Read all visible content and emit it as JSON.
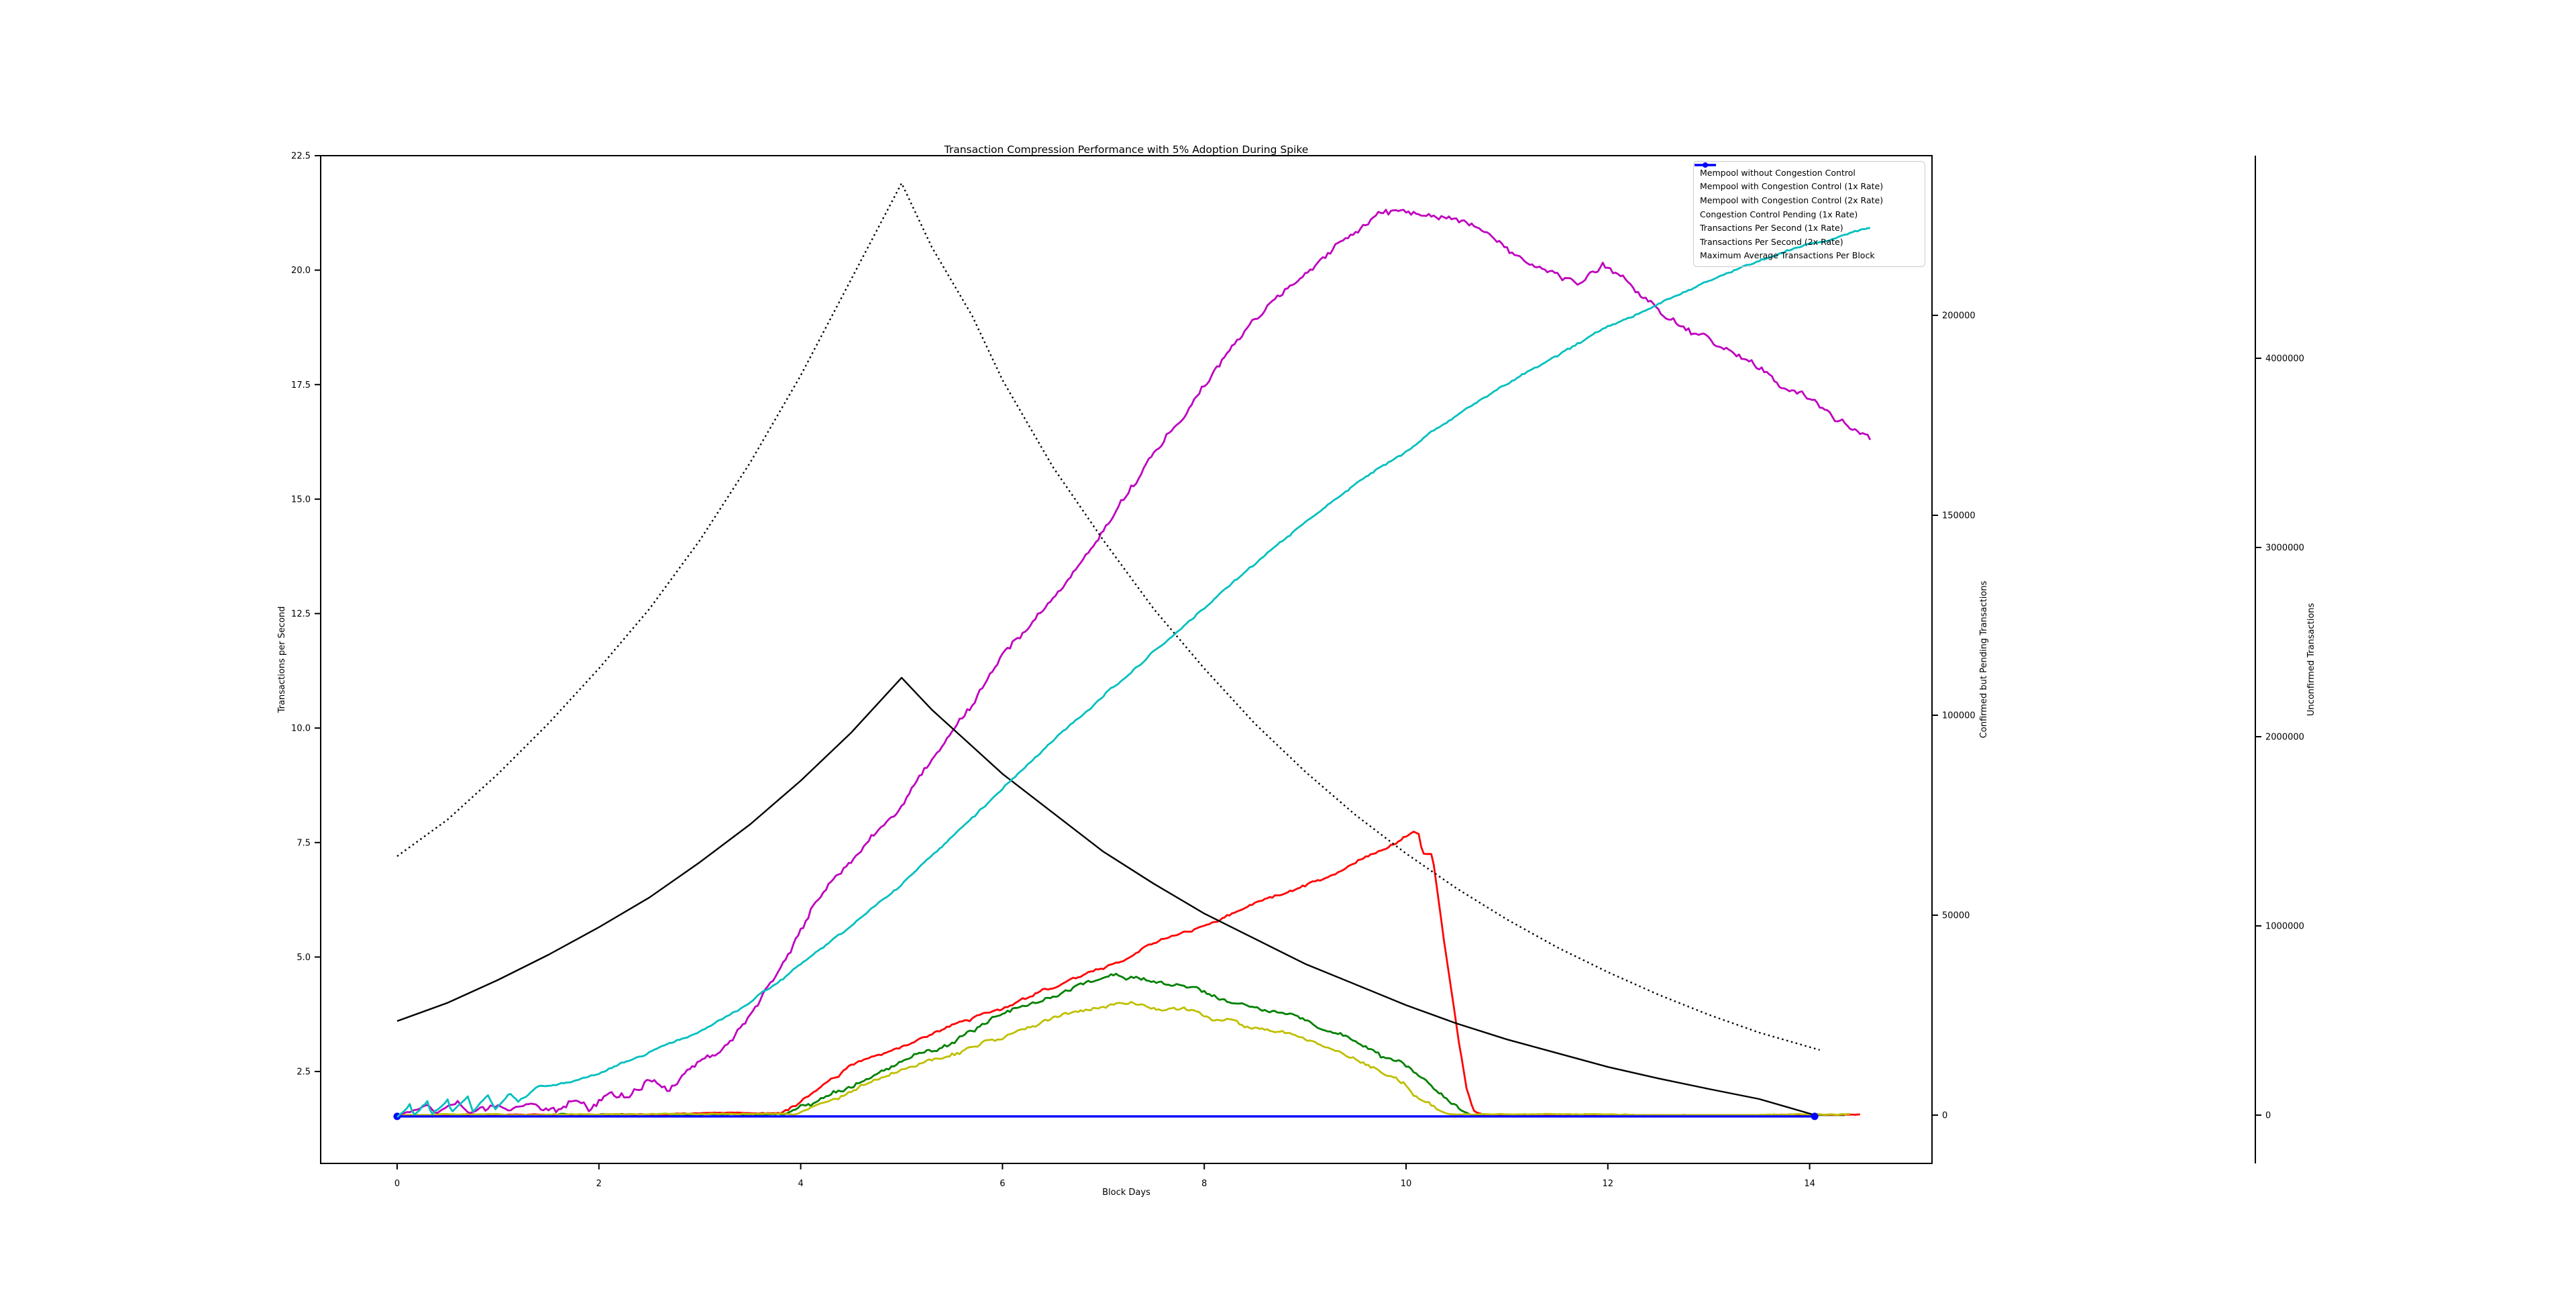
{
  "title": "Transaction Compression Performance with 5% Adoption During Spike",
  "chart_data": {
    "type": "line",
    "title": "Transaction Compression Performance with 5% Adoption During Spike",
    "grid": false,
    "legend_position": "upper right",
    "axes": {
      "x": {
        "label": "Block Days",
        "range": [
          -0.758,
          15.213
        ],
        "ticks": [
          {
            "v": 0,
            "label": "0"
          },
          {
            "v": 2,
            "label": "2"
          },
          {
            "v": 4,
            "label": "4"
          },
          {
            "v": 6,
            "label": "6"
          },
          {
            "v": 8,
            "label": "8"
          },
          {
            "v": 10,
            "label": "10"
          },
          {
            "v": 12,
            "label": "12"
          },
          {
            "v": 14,
            "label": "14"
          }
        ]
      },
      "left": {
        "label": "Transactions per Second",
        "color": "#000000",
        "range": [
          0.493,
          22.5
        ],
        "ticks": [
          {
            "v": 2.5,
            "label": "2.5"
          },
          {
            "v": 5,
            "label": "5.0"
          },
          {
            "v": 7.5,
            "label": "7.5"
          },
          {
            "v": 10,
            "label": "10.0"
          },
          {
            "v": 12.5,
            "label": "12.5"
          },
          {
            "v": 15,
            "label": "15.0"
          },
          {
            "v": 17.5,
            "label": "17.5"
          },
          {
            "v": 20,
            "label": "20.0"
          },
          {
            "v": 22.5,
            "label": "22.5"
          }
        ]
      },
      "right1": {
        "label": "Confirmed but Pending Transactions",
        "color": "#ff0000",
        "range": [
          -12080,
          239930
        ],
        "ticks": [
          {
            "v": 0,
            "label": "0"
          },
          {
            "v": 50000,
            "label": "50000"
          },
          {
            "v": 100000,
            "label": "100000"
          },
          {
            "v": 150000,
            "label": "150000"
          },
          {
            "v": 200000,
            "label": "200000"
          }
        ]
      },
      "right2": {
        "label": "Unconfirmed Transactions",
        "color": "#bfbf00",
        "range": [
          -255300,
          5070800
        ],
        "ticks": [
          {
            "v": 0,
            "label": "0"
          },
          {
            "v": 1000000,
            "label": "1000000"
          },
          {
            "v": 2000000,
            "label": "2000000"
          },
          {
            "v": 3000000,
            "label": "3000000"
          },
          {
            "v": 4000000,
            "label": "4000000"
          }
        ]
      }
    },
    "series": [
      {
        "name": "mempool-without-congestion-control",
        "label": "Mempool without Congestion Control",
        "color": "#008000",
        "axis": "right2",
        "width": 2.8,
        "dash": false,
        "noise": 22000,
        "seed": 7,
        "clampMin": 0,
        "points": [
          [
            0,
            0
          ],
          [
            3.85,
            3000
          ],
          [
            4.1,
            60000
          ],
          [
            4.4,
            140000
          ],
          [
            4.7,
            210000
          ],
          [
            5,
            280000
          ],
          [
            5.5,
            400000
          ],
          [
            6,
            515000
          ],
          [
            6.5,
            625000
          ],
          [
            6.85,
            700000
          ],
          [
            7.05,
            730000
          ],
          [
            7.3,
            715000
          ],
          [
            7.6,
            700000
          ],
          [
            8,
            655000
          ],
          [
            8.4,
            600000
          ],
          [
            8.8,
            540000
          ],
          [
            9.1,
            480000
          ],
          [
            9.4,
            415000
          ],
          [
            9.7,
            350000
          ],
          [
            10,
            240000
          ],
          [
            10.2,
            160000
          ],
          [
            10.4,
            75000
          ],
          [
            10.55,
            20000
          ],
          [
            10.65,
            2000
          ],
          [
            11,
            0
          ],
          [
            14.35,
            0
          ]
        ]
      },
      {
        "name": "congestion-control-pending-1x",
        "label": "Congestion Control Pending (1x Rate)",
        "color": "#ff0000",
        "axis": "right1",
        "width": 2.8,
        "dash": false,
        "noise": 700,
        "seed": 21,
        "clampMin": 0,
        "points": [
          [
            0,
            0
          ],
          [
            3.8,
            500
          ],
          [
            4.1,
            5500
          ],
          [
            4.5,
            12000
          ],
          [
            5,
            16500
          ],
          [
            5.5,
            22000
          ],
          [
            6,
            26500
          ],
          [
            6.5,
            32000
          ],
          [
            7,
            37000
          ],
          [
            7.5,
            43000
          ],
          [
            8,
            48000
          ],
          [
            8.5,
            52500
          ],
          [
            9,
            57000
          ],
          [
            9.3,
            59500
          ],
          [
            9.6,
            64500
          ],
          [
            9.9,
            68500
          ],
          [
            10.08,
            70800
          ],
          [
            10.13,
            70300
          ],
          [
            10.16,
            66000
          ],
          [
            10.26,
            65600
          ],
          [
            10.3,
            58000
          ],
          [
            10.36,
            47000
          ],
          [
            10.44,
            33000
          ],
          [
            10.52,
            19000
          ],
          [
            10.6,
            7000
          ],
          [
            10.68,
            1000
          ],
          [
            10.8,
            0
          ],
          [
            14.5,
            0
          ]
        ]
      },
      {
        "name": "mempool-with-congestion-control-1x",
        "label": "Mempool with Congestion Control (1x Rate)",
        "color": "#bfbf00",
        "axis": "right2",
        "width": 2.8,
        "dash": false,
        "noise": 20000,
        "seed": 13,
        "clampMin": 0,
        "points": [
          [
            0,
            0
          ],
          [
            3.95,
            3000
          ],
          [
            4.2,
            50000
          ],
          [
            4.5,
            115000
          ],
          [
            4.8,
            180000
          ],
          [
            5.1,
            240000
          ],
          [
            5.5,
            330000
          ],
          [
            6,
            425000
          ],
          [
            6.5,
            510000
          ],
          [
            6.9,
            570000
          ],
          [
            7.15,
            600000
          ],
          [
            7.4,
            590000
          ],
          [
            7.8,
            560000
          ],
          [
            8.2,
            510000
          ],
          [
            8.6,
            450000
          ],
          [
            9,
            385000
          ],
          [
            9.3,
            320000
          ],
          [
            9.6,
            255000
          ],
          [
            9.9,
            185000
          ],
          [
            10.1,
            105000
          ],
          [
            10.3,
            30000
          ],
          [
            10.42,
            3000
          ],
          [
            10.6,
            0
          ],
          [
            14.42,
            0
          ]
        ]
      },
      {
        "name": "mempool-with-congestion-control-2x",
        "label": "Mempool with Congestion Control (2x Rate)",
        "color": "#bf00bf",
        "axis": "right2",
        "width": 2.8,
        "dash": false,
        "noise": 35000,
        "seed": 5,
        "clampMin": 0,
        "points": [
          [
            0,
            0
          ],
          [
            0.15,
            30000
          ],
          [
            0.3,
            55000
          ],
          [
            0.38,
            8000
          ],
          [
            0.6,
            65000
          ],
          [
            0.72,
            15000
          ],
          [
            0.95,
            80000
          ],
          [
            1.1,
            25000
          ],
          [
            1.35,
            90000
          ],
          [
            1.5,
            35000
          ],
          [
            1.75,
            105000
          ],
          [
            1.9,
            60000
          ],
          [
            2.1,
            140000
          ],
          [
            2.3,
            110000
          ],
          [
            2.5,
            190000
          ],
          [
            2.7,
            160000
          ],
          [
            2.9,
            260000
          ],
          [
            3.1,
            330000
          ],
          [
            3.3,
            420000
          ],
          [
            3.5,
            560000
          ],
          [
            3.7,
            720000
          ],
          [
            3.9,
            900000
          ],
          [
            4.1,
            1060000
          ],
          [
            4.35,
            1230000
          ],
          [
            4.6,
            1400000
          ],
          [
            4.85,
            1560000
          ],
          [
            5.1,
            1730000
          ],
          [
            5.4,
            1930000
          ],
          [
            5.7,
            2140000
          ],
          [
            6,
            2400000
          ],
          [
            6.3,
            2580000
          ],
          [
            6.6,
            2760000
          ],
          [
            6.9,
            2980000
          ],
          [
            7.2,
            3250000
          ],
          [
            7.5,
            3500000
          ],
          [
            7.8,
            3720000
          ],
          [
            8.1,
            3930000
          ],
          [
            8.45,
            4200000
          ],
          [
            8.8,
            4390000
          ],
          [
            9.1,
            4520000
          ],
          [
            9.45,
            4680000
          ],
          [
            9.75,
            4780000
          ],
          [
            10.05,
            4800000
          ],
          [
            10.35,
            4750000
          ],
          [
            10.6,
            4690000
          ],
          [
            11,
            4560000
          ],
          [
            11.35,
            4450000
          ],
          [
            11.7,
            4370000
          ],
          [
            11.95,
            4480000
          ],
          [
            12.15,
            4400000
          ],
          [
            12.5,
            4270000
          ],
          [
            12.9,
            4140000
          ],
          [
            13.3,
            4030000
          ],
          [
            13.7,
            3890000
          ],
          [
            14.1,
            3730000
          ],
          [
            14.6,
            3550000
          ]
        ]
      },
      {
        "name": "transactions-per-second-1x",
        "label": "Transactions Per Second (1x Rate)",
        "color": "#000000",
        "axis": "left",
        "width": 2.4,
        "dash": false,
        "noise": 0,
        "seed": 1,
        "points": [
          [
            0,
            3.6
          ],
          [
            0.5,
            4.0
          ],
          [
            1,
            4.5
          ],
          [
            1.5,
            5.05
          ],
          [
            2,
            5.65
          ],
          [
            2.5,
            6.3
          ],
          [
            3,
            7.07
          ],
          [
            3.5,
            7.9
          ],
          [
            4,
            8.85
          ],
          [
            4.5,
            9.9
          ],
          [
            5,
            11.1
          ],
          [
            5.3,
            10.4
          ],
          [
            5.7,
            9.6
          ],
          [
            6,
            9.0
          ],
          [
            6.5,
            8.15
          ],
          [
            7,
            7.3
          ],
          [
            7.5,
            6.6
          ],
          [
            8,
            5.95
          ],
          [
            8.5,
            5.4
          ],
          [
            9,
            4.85
          ],
          [
            9.5,
            4.4
          ],
          [
            10,
            3.95
          ],
          [
            10.5,
            3.55
          ],
          [
            11,
            3.2
          ],
          [
            11.5,
            2.9
          ],
          [
            12,
            2.6
          ],
          [
            12.5,
            2.35
          ],
          [
            13,
            2.12
          ],
          [
            13.5,
            1.9
          ],
          [
            14.05,
            1.55
          ]
        ]
      },
      {
        "name": "transactions-per-second-2x",
        "label": "Transactions Per Second (2x Rate)",
        "color": "#000000",
        "axis": "left",
        "width": 2.4,
        "dash": true,
        "noise": 0,
        "seed": 1,
        "points": [
          [
            0,
            7.2
          ],
          [
            0.5,
            8.0
          ],
          [
            1,
            9.0
          ],
          [
            1.5,
            10.1
          ],
          [
            2,
            11.3
          ],
          [
            2.5,
            12.6
          ],
          [
            3,
            14.1
          ],
          [
            3.5,
            15.8
          ],
          [
            4,
            17.7
          ],
          [
            4.5,
            19.8
          ],
          [
            5,
            21.9
          ],
          [
            5.3,
            20.5
          ],
          [
            5.7,
            19.0
          ],
          [
            6,
            17.6
          ],
          [
            6.5,
            15.7
          ],
          [
            7,
            14.1
          ],
          [
            7.5,
            12.6
          ],
          [
            8,
            11.3
          ],
          [
            8.5,
            10.1
          ],
          [
            9,
            9.05
          ],
          [
            9.5,
            8.1
          ],
          [
            10,
            7.26
          ],
          [
            10.5,
            6.5
          ],
          [
            11,
            5.82
          ],
          [
            11.5,
            5.21
          ],
          [
            12,
            4.67
          ],
          [
            12.5,
            4.18
          ],
          [
            13,
            3.74
          ],
          [
            13.5,
            3.35
          ],
          [
            14.1,
            2.97
          ]
        ]
      },
      {
        "name": "maximum-average-transactions-per-block",
        "label": "Maximum Average Transactions Per Block",
        "color": "#0000ff",
        "axis": "left",
        "width": 3.4,
        "dash": false,
        "noise": 0,
        "seed": 1,
        "markers": [
          [
            0,
            1.52
          ],
          [
            14.05,
            1.52
          ]
        ],
        "points": [
          [
            0,
            1.52
          ],
          [
            14.05,
            1.52
          ]
        ]
      },
      {
        "name": "unlabeled-cyan-series",
        "label": "",
        "color": "#00bfbf",
        "axis": "left",
        "width": 2.8,
        "dash": false,
        "noise": 0.045,
        "seed": 31,
        "clampMin": 1.45,
        "points": [
          [
            0,
            1.52
          ],
          [
            0.13,
            1.82
          ],
          [
            0.16,
            1.55
          ],
          [
            0.3,
            1.86
          ],
          [
            0.34,
            1.57
          ],
          [
            0.5,
            1.9
          ],
          [
            0.54,
            1.6
          ],
          [
            0.7,
            1.95
          ],
          [
            0.75,
            1.65
          ],
          [
            0.9,
            2.0
          ],
          [
            0.97,
            1.7
          ],
          [
            1.12,
            2.06
          ],
          [
            1.2,
            1.85
          ],
          [
            1.4,
            2.15
          ],
          [
            1.7,
            2.3
          ],
          [
            2,
            2.5
          ],
          [
            2.5,
            2.9
          ],
          [
            3,
            3.35
          ],
          [
            3.5,
            4.0
          ],
          [
            4,
            4.8
          ],
          [
            4.5,
            5.65
          ],
          [
            5,
            6.55
          ],
          [
            5.5,
            7.6
          ],
          [
            6,
            8.7
          ],
          [
            6.5,
            9.7
          ],
          [
            7,
            10.7
          ],
          [
            7.5,
            11.7
          ],
          [
            8,
            12.65
          ],
          [
            8.5,
            13.6
          ],
          [
            9,
            14.45
          ],
          [
            9.5,
            15.3
          ],
          [
            10,
            16.05
          ],
          [
            10.5,
            16.8
          ],
          [
            11,
            17.5
          ],
          [
            11.5,
            18.1
          ],
          [
            12,
            18.75
          ],
          [
            12.5,
            19.3
          ],
          [
            13,
            19.8
          ],
          [
            13.5,
            20.25
          ],
          [
            14,
            20.6
          ],
          [
            14.6,
            20.9
          ]
        ]
      }
    ],
    "legend": {
      "order": [
        0,
        2,
        3,
        1,
        4,
        5,
        6
      ]
    }
  }
}
